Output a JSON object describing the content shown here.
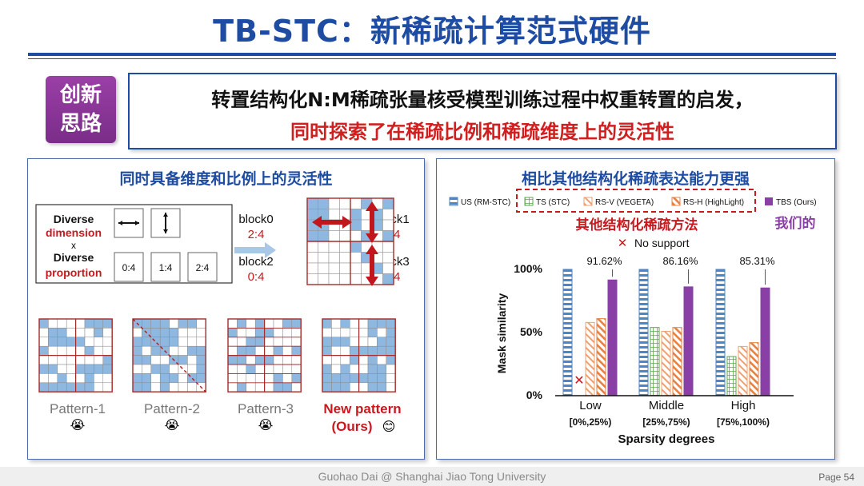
{
  "title": "TB-STC：新稀疏计算范式硬件",
  "badge": {
    "line1": "创新",
    "line2": "思路"
  },
  "idea": {
    "line1": "转置结构化N:M稀疏张量核受模型训练过程中权重转置的启发，",
    "line2": "同时探索了在稀疏比例和稀疏维度上的灵活性"
  },
  "left_panel": {
    "title": "同时具备维度和比例上的灵活性",
    "diverse": {
      "w1": "Diverse",
      "dimension": "dimension",
      "x": "x",
      "w2": "Diverse",
      "proportion": "proportion"
    },
    "ratios": [
      "0:4",
      "1:4",
      "2:4"
    ],
    "blocks": [
      {
        "name": "block0",
        "ratio": "2:4"
      },
      {
        "name": "block1",
        "ratio": "2:4"
      },
      {
        "name": "block2",
        "ratio": "0:4"
      },
      {
        "name": "block3",
        "ratio": "1:4"
      }
    ],
    "patterns": [
      {
        "label": "Pattern-1",
        "emoji": "😭"
      },
      {
        "label": "Pattern-2",
        "emoji": "😭"
      },
      {
        "label": "Pattern-3",
        "emoji": "😭"
      },
      {
        "label": "New pattern",
        "label2": "(Ours)",
        "emoji": "😊"
      }
    ]
  },
  "right_panel": {
    "title": "相比其他结构化稀疏表达能力更强",
    "other_methods_note": "其他结构化稀疏方法",
    "ours_note": "我们的",
    "no_support": "No support",
    "cross": "✕"
  },
  "chart_data": {
    "type": "bar",
    "ylabel": "Mask similarity",
    "xlabel": "Sparsity degrees",
    "categories": [
      "Low",
      "Middle",
      "High"
    ],
    "category_ranges": [
      "[0%,25%)",
      "[25%,75%)",
      "[75%,100%)"
    ],
    "yticks": [
      "0%",
      "50%",
      "100%"
    ],
    "ylim": [
      0,
      100
    ],
    "legend_position": "top",
    "series": [
      {
        "name": "US (RM-STC)",
        "values": [
          100,
          100,
          100
        ],
        "color": "#4a86c8",
        "hatch": "horizontal"
      },
      {
        "name": "TS (STC)",
        "values": [
          0,
          54,
          31
        ],
        "color": "#5aa848",
        "hatch": "grid"
      },
      {
        "name": "RS-V (VEGETA)",
        "values": [
          58,
          51,
          39
        ],
        "color": "#f0a070",
        "hatch": "diagonal"
      },
      {
        "name": "RS-H (HighLight)",
        "values": [
          61,
          54,
          42
        ],
        "color": "#e88040",
        "hatch": "diagonal"
      },
      {
        "name": "TBS (Ours)",
        "values": [
          91.62,
          86.16,
          85.31
        ],
        "color": "#8a3fa6",
        "hatch": "none"
      }
    ],
    "annotations": [
      "91.62%",
      "86.16%",
      "85.31%"
    ]
  },
  "footer": {
    "text": "Guohao Dai @ Shanghai Jiao Tong University",
    "page": "Page 54"
  }
}
